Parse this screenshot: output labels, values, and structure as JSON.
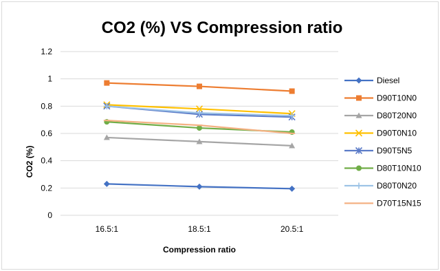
{
  "chart_data": {
    "type": "line",
    "title": "CO2 (%) VS Compression ratio",
    "xlabel": "Compression ratio",
    "ylabel": "CO2 (%)",
    "categories": [
      "16.5:1",
      "18.5:1",
      "20.5:1"
    ],
    "ylim": [
      0,
      1.2
    ],
    "yticks": [
      "0",
      "0.2",
      "0.4",
      "0.6",
      "0.8",
      "1",
      "1.2"
    ],
    "ytick_values": [
      0,
      0.2,
      0.4,
      0.6,
      0.8,
      1.0,
      1.2
    ],
    "grid": true,
    "legend": "right",
    "series": [
      {
        "name": "Diesel",
        "values": [
          0.23,
          0.21,
          0.195
        ],
        "color": "#4472c4",
        "marker": "diamond"
      },
      {
        "name": "D90T10N0",
        "values": [
          0.97,
          0.945,
          0.91
        ],
        "color": "#ed7d31",
        "marker": "square"
      },
      {
        "name": "D80T20N0",
        "values": [
          0.57,
          0.54,
          0.51
        ],
        "color": "#a5a5a5",
        "marker": "triangle"
      },
      {
        "name": "D90T0N10",
        "values": [
          0.81,
          0.78,
          0.745
        ],
        "color": "#ffc000",
        "marker": "x"
      },
      {
        "name": "D90T5N5",
        "values": [
          0.8,
          0.74,
          0.72
        ],
        "color": "#5b7bc8",
        "marker": "star"
      },
      {
        "name": "D80T10N10",
        "values": [
          0.685,
          0.64,
          0.61
        ],
        "color": "#70ad47",
        "marker": "circle"
      },
      {
        "name": "D80T0N20",
        "values": [
          0.8,
          0.75,
          0.73
        ],
        "color": "#9dc3e6",
        "marker": "plus"
      },
      {
        "name": "D70T15N15",
        "values": [
          0.695,
          0.66,
          0.6
        ],
        "color": "#f4b183",
        "marker": "dash"
      }
    ]
  }
}
